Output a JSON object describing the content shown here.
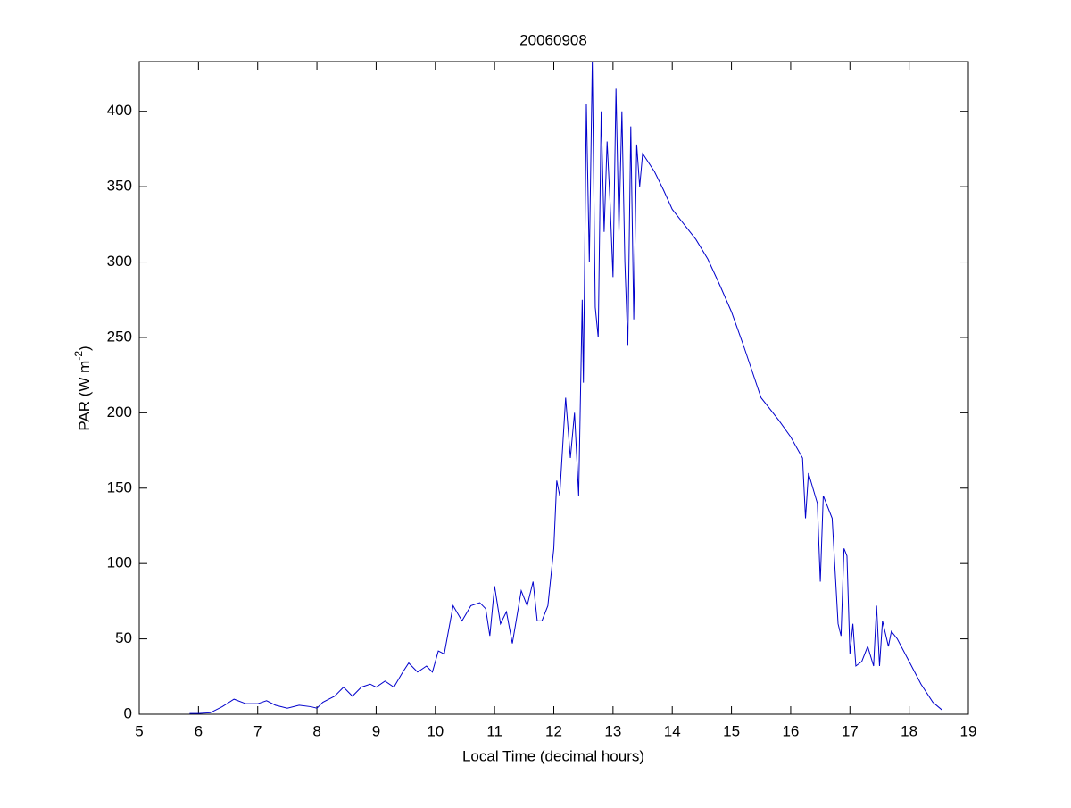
{
  "chart_data": {
    "type": "line",
    "title": "20060908",
    "xlabel": "Local Time (decimal hours)",
    "ylabel": {
      "text": "PAR (W m",
      "superscript": "-2",
      "suffix": ")"
    },
    "xlim": [
      5,
      19
    ],
    "xticks": [
      5,
      6,
      7,
      8,
      9,
      10,
      11,
      12,
      13,
      14,
      15,
      16,
      17,
      18,
      19
    ],
    "ylim": [
      0,
      433
    ],
    "yticks": [
      0,
      50,
      100,
      150,
      200,
      250,
      300,
      350,
      400
    ],
    "series": [
      {
        "color": "#0000cc",
        "x": [
          5.85,
          6.0,
          6.2,
          6.4,
          6.6,
          6.8,
          7.0,
          7.15,
          7.3,
          7.5,
          7.7,
          7.9,
          8.0,
          8.1,
          8.3,
          8.45,
          8.6,
          8.75,
          8.9,
          9.0,
          9.15,
          9.3,
          9.45,
          9.55,
          9.7,
          9.85,
          9.95,
          10.05,
          10.15,
          10.3,
          10.45,
          10.6,
          10.75,
          10.85,
          10.92,
          11.0,
          11.1,
          11.2,
          11.3,
          11.45,
          11.55,
          11.65,
          11.72,
          11.8,
          11.9,
          12.0,
          12.05,
          12.1,
          12.2,
          12.28,
          12.35,
          12.42,
          12.48,
          12.5,
          12.55,
          12.6,
          12.65,
          12.7,
          12.75,
          12.8,
          12.85,
          12.9,
          12.95,
          13.0,
          13.05,
          13.1,
          13.15,
          13.2,
          13.25,
          13.3,
          13.35,
          13.4,
          13.45,
          13.5,
          13.7,
          13.85,
          14.0,
          14.2,
          14.4,
          14.6,
          14.8,
          15.0,
          15.2,
          15.5,
          15.8,
          16.0,
          16.2,
          16.25,
          16.3,
          16.45,
          16.5,
          16.55,
          16.7,
          16.8,
          16.85,
          16.9,
          16.95,
          17.0,
          17.05,
          17.1,
          17.2,
          17.3,
          17.4,
          17.45,
          17.5,
          17.55,
          17.65,
          17.7,
          17.8,
          18.0,
          18.2,
          18.4,
          18.55
        ],
        "values": [
          0.5,
          0.5,
          1,
          5,
          10,
          7,
          7,
          9,
          6,
          4,
          6,
          5,
          4,
          8,
          12,
          18,
          12,
          18,
          20,
          18,
          22,
          18,
          28,
          34,
          28,
          32,
          28,
          42,
          40,
          72,
          62,
          72,
          74,
          70,
          52,
          85,
          60,
          68,
          47,
          82,
          72,
          88,
          62,
          62,
          72,
          110,
          155,
          145,
          210,
          170,
          200,
          145,
          275,
          220,
          405,
          300,
          433,
          270,
          250,
          400,
          320,
          380,
          340,
          290,
          415,
          320,
          400,
          300,
          245,
          390,
          262,
          378,
          350,
          372,
          360,
          348,
          335,
          325,
          315,
          302,
          285,
          267,
          245,
          210,
          195,
          184,
          170,
          130,
          160,
          140,
          88,
          145,
          130,
          60,
          52,
          110,
          105,
          40,
          60,
          32,
          35,
          45,
          32,
          72,
          32,
          62,
          45,
          55,
          50,
          35,
          20,
          8,
          3
        ]
      }
    ]
  }
}
